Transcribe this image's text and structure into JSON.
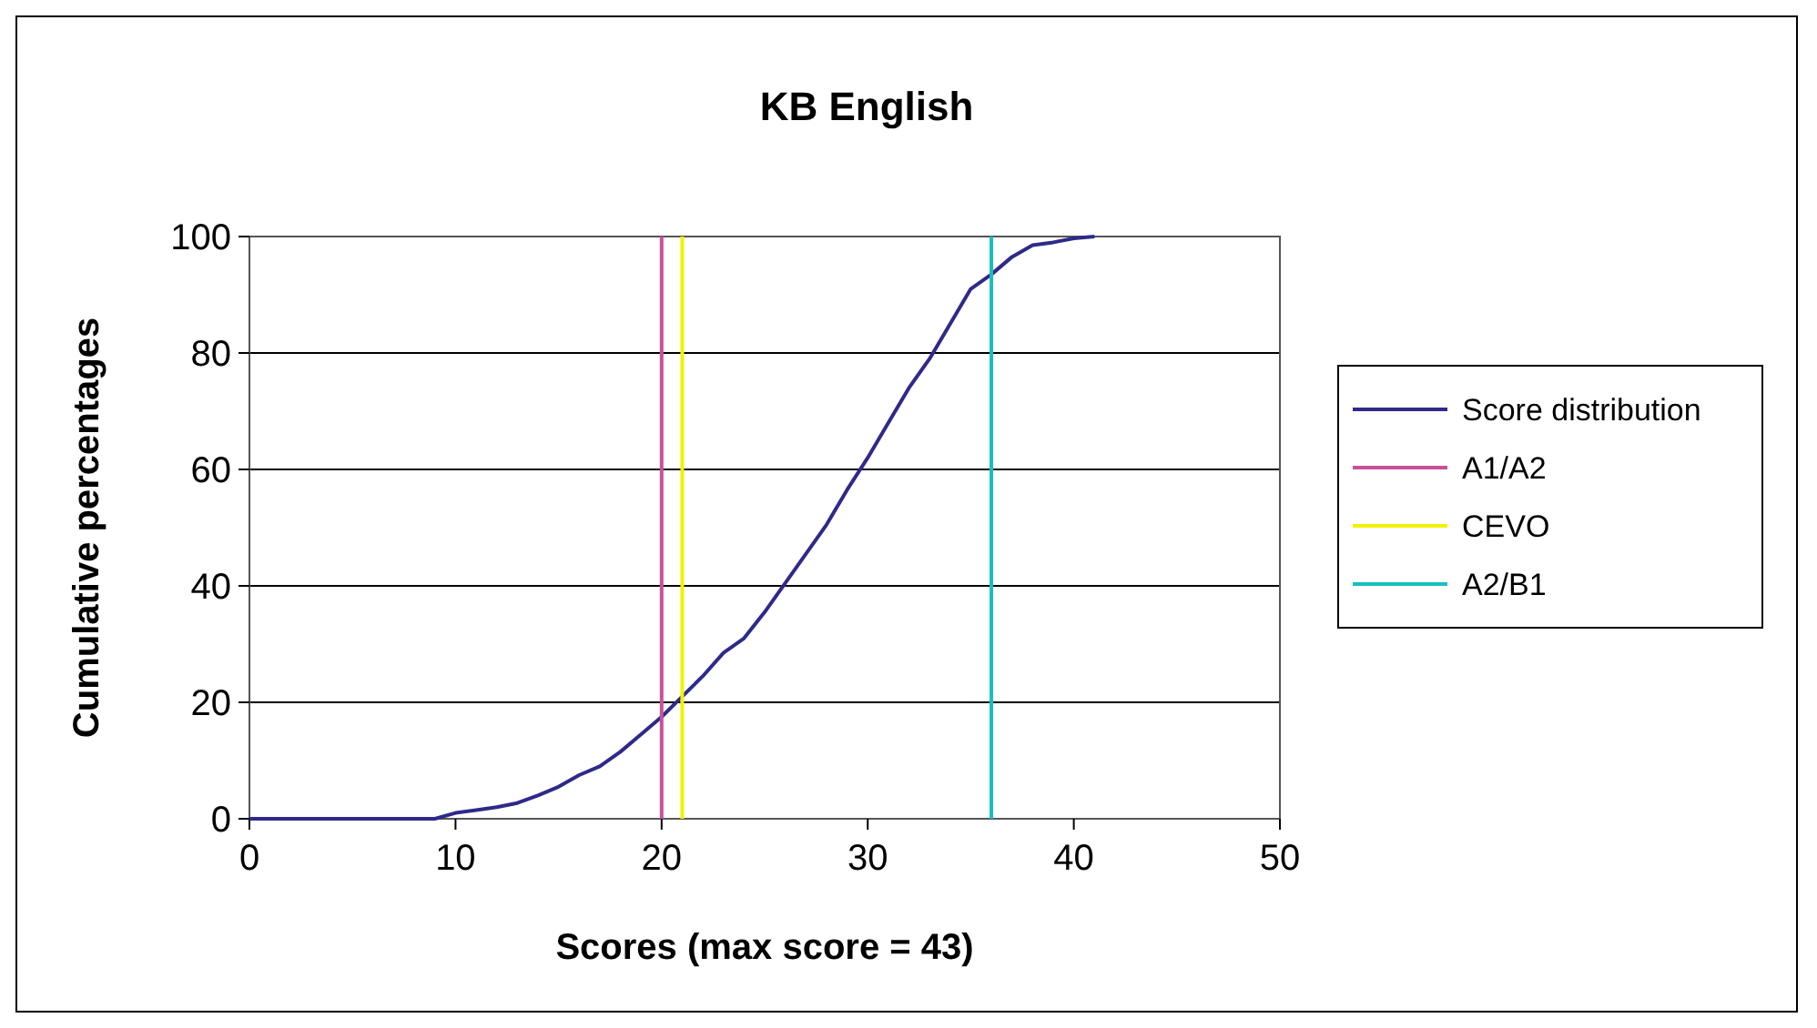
{
  "chart_data": {
    "type": "line",
    "title": "KB English",
    "xlabel": "Scores (max score = 43)",
    "ylabel": "Cumulative percentages",
    "x": [
      0,
      1,
      2,
      3,
      4,
      5,
      6,
      7,
      8,
      9,
      10,
      11,
      12,
      13,
      14,
      15,
      16,
      17,
      18,
      19,
      20,
      21,
      22,
      23,
      24,
      25,
      26,
      27,
      28,
      29,
      30,
      31,
      32,
      33,
      34,
      35,
      36,
      37,
      38,
      39,
      40,
      41
    ],
    "series": [
      {
        "name": "Score distribution",
        "color": "#2e2a8a",
        "values": [
          0,
          0,
          0,
          0,
          0,
          0,
          0,
          0,
          0,
          0,
          1,
          1.5,
          2,
          2.7,
          4,
          5.5,
          7.5,
          9,
          11.5,
          14.5,
          17.5,
          21,
          24.5,
          28.5,
          31,
          35.5,
          40.5,
          45.5,
          50.5,
          56.5,
          62,
          68,
          74,
          79,
          85,
          91,
          93.5,
          96.5,
          98.5,
          99,
          99.7,
          100
        ]
      },
      {
        "name": "A1/A2",
        "color": "#c8509a",
        "x": [
          20,
          20
        ],
        "values": [
          0,
          100
        ]
      },
      {
        "name": "CEVO",
        "color": "#f2f200",
        "x": [
          21,
          21
        ],
        "values": [
          0,
          100
        ]
      },
      {
        "name": "A2/B1",
        "color": "#19bfbf",
        "x": [
          36,
          36
        ],
        "values": [
          0,
          100
        ]
      }
    ],
    "xlim": [
      0,
      50
    ],
    "xticks": [
      0,
      10,
      20,
      30,
      40,
      50
    ],
    "ylim": [
      0,
      100
    ],
    "yticks": [
      0,
      20,
      40,
      60,
      80,
      100
    ],
    "grid": "y",
    "legend": "right",
    "marker": "none",
    "line_style": "solid"
  }
}
